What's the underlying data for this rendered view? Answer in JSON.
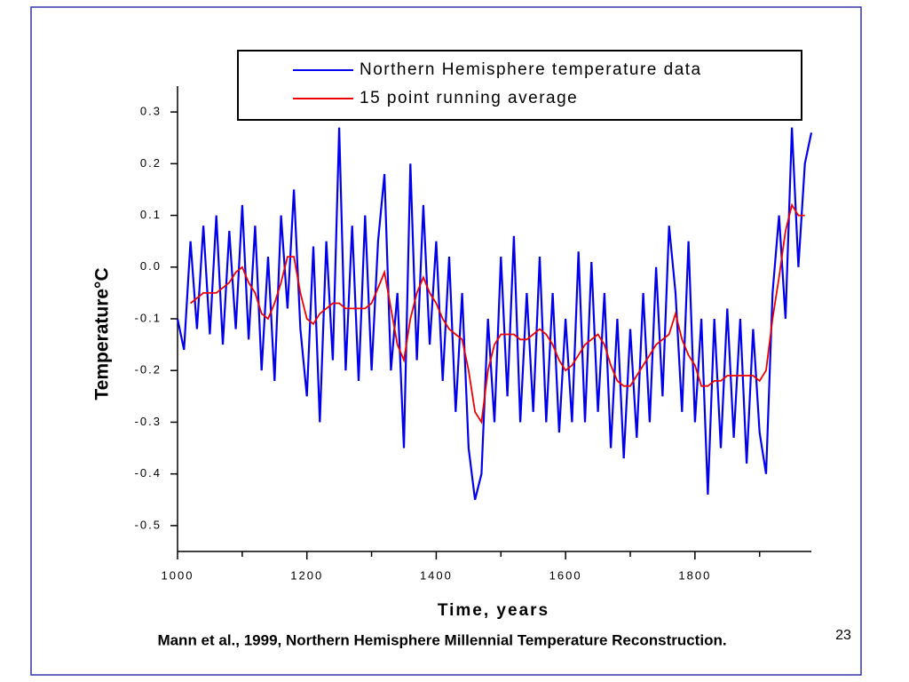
{
  "chart_data": {
    "type": "line",
    "xlabel": "Time, years",
    "ylabel": "Temperature°C",
    "caption": "Mann et al., 1999, Northern Hemisphere Millennial Temperature Reconstruction.",
    "page_number": "23",
    "x": [
      1000,
      1010,
      1020,
      1030,
      1040,
      1050,
      1060,
      1070,
      1080,
      1090,
      1100,
      1110,
      1120,
      1130,
      1140,
      1150,
      1160,
      1170,
      1180,
      1190,
      1200,
      1210,
      1220,
      1230,
      1240,
      1250,
      1260,
      1270,
      1280,
      1290,
      1300,
      1310,
      1320,
      1330,
      1340,
      1350,
      1360,
      1370,
      1380,
      1390,
      1400,
      1410,
      1420,
      1430,
      1440,
      1450,
      1460,
      1470,
      1480,
      1490,
      1500,
      1510,
      1520,
      1530,
      1540,
      1550,
      1560,
      1570,
      1580,
      1590,
      1600,
      1610,
      1620,
      1630,
      1640,
      1650,
      1660,
      1670,
      1680,
      1690,
      1700,
      1710,
      1720,
      1730,
      1740,
      1750,
      1760,
      1770,
      1780,
      1790,
      1800,
      1810,
      1820,
      1830,
      1840,
      1850,
      1860,
      1870,
      1880,
      1890,
      1900,
      1910,
      1920,
      1930,
      1940,
      1950,
      1960,
      1970,
      1980
    ],
    "series": [
      {
        "name": "Northern Hemisphere temperature data",
        "color": "#0000ee",
        "values": [
          -0.1,
          -0.16,
          0.05,
          -0.12,
          0.08,
          -0.13,
          0.1,
          -0.15,
          0.07,
          -0.12,
          0.12,
          -0.14,
          0.08,
          -0.2,
          0.02,
          -0.22,
          0.1,
          -0.08,
          0.15,
          -0.12,
          -0.25,
          0.04,
          -0.3,
          0.05,
          -0.18,
          0.27,
          -0.2,
          0.08,
          -0.22,
          0.1,
          -0.2,
          0.05,
          0.18,
          -0.2,
          -0.05,
          -0.35,
          0.2,
          -0.18,
          0.12,
          -0.15,
          0.05,
          -0.22,
          0.02,
          -0.28,
          -0.05,
          -0.35,
          -0.45,
          -0.4,
          -0.1,
          -0.3,
          0.02,
          -0.25,
          0.06,
          -0.3,
          -0.05,
          -0.28,
          0.02,
          -0.3,
          -0.05,
          -0.32,
          -0.1,
          -0.3,
          0.03,
          -0.3,
          0.01,
          -0.28,
          -0.05,
          -0.35,
          -0.1,
          -0.37,
          -0.12,
          -0.33,
          -0.05,
          -0.3,
          0.0,
          -0.25,
          0.08,
          -0.05,
          -0.28,
          0.05,
          -0.3,
          -0.1,
          -0.44,
          -0.1,
          -0.35,
          -0.08,
          -0.33,
          -0.1,
          -0.38,
          -0.12,
          -0.32,
          -0.4,
          -0.05,
          0.1,
          -0.1,
          0.27,
          0.0,
          0.2,
          0.26
        ]
      },
      {
        "name": "15 point running average",
        "color": "#ee0000",
        "values": [
          null,
          null,
          -0.07,
          -0.06,
          -0.05,
          -0.05,
          -0.05,
          -0.04,
          -0.03,
          -0.01,
          0.0,
          -0.03,
          -0.05,
          -0.09,
          -0.1,
          -0.07,
          -0.03,
          0.02,
          0.02,
          -0.05,
          -0.1,
          -0.11,
          -0.09,
          -0.08,
          -0.07,
          -0.07,
          -0.08,
          -0.08,
          -0.08,
          -0.08,
          -0.07,
          -0.04,
          -0.01,
          -0.08,
          -0.15,
          -0.18,
          -0.1,
          -0.05,
          -0.02,
          -0.05,
          -0.07,
          -0.1,
          -0.12,
          -0.13,
          -0.14,
          -0.2,
          -0.28,
          -0.3,
          -0.2,
          -0.15,
          -0.13,
          -0.13,
          -0.13,
          -0.14,
          -0.14,
          -0.13,
          -0.12,
          -0.13,
          -0.15,
          -0.18,
          -0.2,
          -0.19,
          -0.17,
          -0.15,
          -0.14,
          -0.13,
          -0.15,
          -0.19,
          -0.22,
          -0.23,
          -0.23,
          -0.21,
          -0.19,
          -0.17,
          -0.15,
          -0.14,
          -0.13,
          -0.09,
          -0.14,
          -0.17,
          -0.19,
          -0.23,
          -0.23,
          -0.22,
          -0.22,
          -0.21,
          -0.21,
          -0.21,
          -0.21,
          -0.21,
          -0.22,
          -0.2,
          -0.1,
          -0.02,
          0.07,
          0.12,
          0.1,
          0.1,
          null
        ]
      }
    ],
    "xlim": [
      1000,
      1980
    ],
    "xticks": [
      1000,
      1200,
      1400,
      1600,
      1800
    ],
    "xminorticks": [
      1100,
      1300,
      1500,
      1700,
      1900
    ],
    "ylim": [
      -0.55,
      0.35
    ],
    "yticks": [
      0.3,
      0.2,
      0.1,
      {
        "value": 0,
        "label": "0.0"
      },
      -0.1,
      -0.2,
      -0.3,
      -0.4,
      -0.5
    ]
  }
}
